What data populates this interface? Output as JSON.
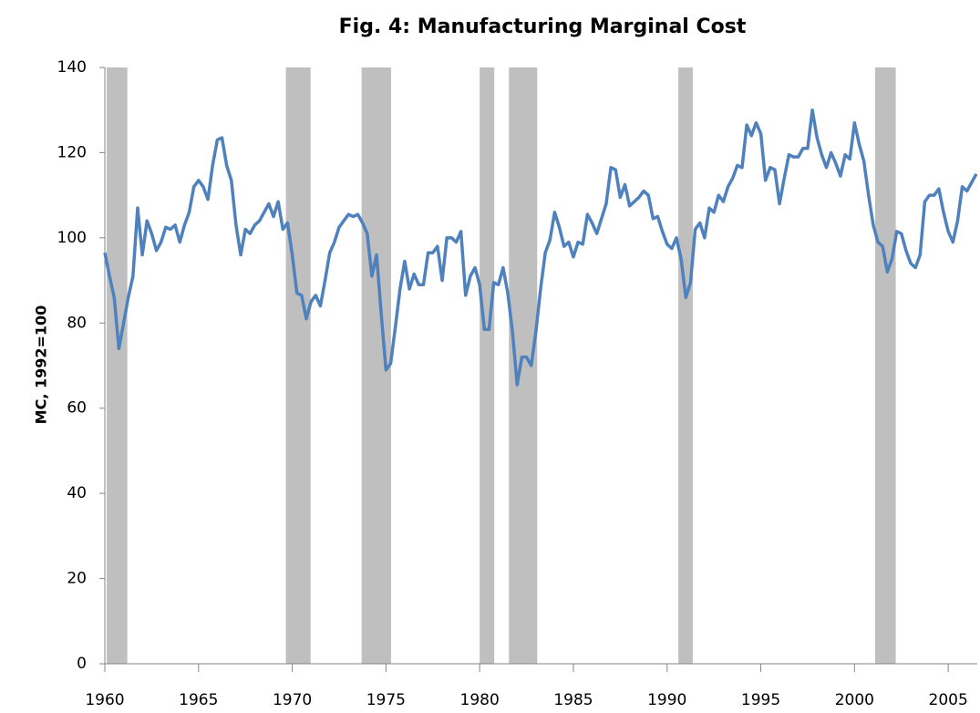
{
  "chart_data": {
    "type": "line",
    "title": "Fig. 4: Manufacturing Marginal Cost",
    "y_label": "MC, 1992=100",
    "x": [
      1960,
      1960.25,
      1960.5,
      1960.75,
      1961,
      1961.25,
      1961.5,
      1961.75,
      1962,
      1962.25,
      1962.5,
      1962.75,
      1963,
      1963.25,
      1963.5,
      1963.75,
      1964,
      1964.25,
      1964.5,
      1964.75,
      1965,
      1965.25,
      1965.5,
      1965.75,
      1966,
      1966.25,
      1966.5,
      1966.75,
      1967,
      1967.25,
      1967.5,
      1967.75,
      1968,
      1968.25,
      1968.5,
      1968.75,
      1969,
      1969.25,
      1969.5,
      1969.75,
      1970,
      1970.25,
      1970.5,
      1970.75,
      1971,
      1971.25,
      1971.5,
      1971.75,
      1972,
      1972.25,
      1972.5,
      1972.75,
      1973,
      1973.25,
      1973.5,
      1973.75,
      1974,
      1974.25,
      1974.5,
      1974.75,
      1975,
      1975.25,
      1975.5,
      1975.75,
      1976,
      1976.25,
      1976.5,
      1976.75,
      1977,
      1977.25,
      1977.5,
      1977.75,
      1978,
      1978.25,
      1978.5,
      1978.75,
      1979,
      1979.25,
      1979.5,
      1979.75,
      1980,
      1980.25,
      1980.5,
      1980.75,
      1981,
      1981.25,
      1981.5,
      1981.75,
      1982,
      1982.25,
      1982.5,
      1982.75,
      1983,
      1983.25,
      1983.5,
      1983.75,
      1984,
      1984.25,
      1984.5,
      1984.75,
      1985,
      1985.25,
      1985.5,
      1985.75,
      1986,
      1986.25,
      1986.5,
      1986.75,
      1987,
      1987.25,
      1987.5,
      1987.75,
      1988,
      1988.25,
      1988.5,
      1988.75,
      1989,
      1989.25,
      1989.5,
      1989.75,
      1990,
      1990.25,
      1990.5,
      1990.75,
      1991,
      1991.25,
      1991.5,
      1991.75,
      1992,
      1992.25,
      1992.5,
      1992.75,
      1993,
      1993.25,
      1993.5,
      1993.75,
      1994,
      1994.25,
      1994.5,
      1994.75,
      1995,
      1995.25,
      1995.5,
      1995.75,
      1996,
      1996.25,
      1996.5,
      1996.75,
      1997,
      1997.25,
      1997.5,
      1997.75,
      1998,
      1998.25,
      1998.5,
      1998.75,
      1999,
      1999.25,
      1999.5,
      1999.75,
      2000,
      2000.25,
      2000.5,
      2000.75,
      2001,
      2001.25,
      2001.5,
      2001.75,
      2002,
      2002.25,
      2002.5,
      2002.75,
      2003,
      2003.25,
      2003.5,
      2003.75,
      2004,
      2004.25,
      2004.5,
      2004.75,
      2005,
      2005.25,
      2005.5,
      2005.75,
      2006,
      2006.25,
      2006.5
    ],
    "series": [
      {
        "color": "#4f81bd",
        "values": [
          96.5,
          91,
          86,
          74,
          80,
          86,
          91,
          107,
          96,
          104,
          101,
          97,
          99,
          102.5,
          102,
          103,
          99,
          103,
          106,
          112,
          113.5,
          112,
          109,
          117,
          123,
          123.5,
          117,
          113.5,
          103,
          96,
          102,
          101,
          103,
          104,
          106,
          108,
          105,
          108.5,
          102,
          103.5,
          96,
          87,
          86.5,
          81,
          85,
          86.5,
          84,
          90,
          96.5,
          99,
          102.5,
          104,
          105.5,
          105,
          105.5,
          103.5,
          101,
          91,
          96,
          82,
          69,
          70.5,
          79,
          88,
          94.5,
          88,
          91.5,
          89,
          89,
          96.5,
          96.5,
          98,
          90,
          100,
          100,
          99,
          101.5,
          86.5,
          91,
          93,
          89,
          78.5,
          78.5,
          89.5,
          89,
          93,
          87,
          78,
          65.5,
          72,
          72,
          70,
          78,
          88,
          96.5,
          99.5,
          106,
          102.5,
          98,
          99,
          95.5,
          99,
          98.5,
          105.5,
          103.5,
          101,
          104.5,
          108,
          116.5,
          116,
          109.5,
          112.5,
          107.5,
          108.5,
          109.5,
          111,
          110,
          104.5,
          105,
          101.5,
          98.5,
          97.5,
          100,
          95,
          86,
          89.5,
          102,
          103.5,
          100,
          107,
          106,
          110,
          108.5,
          112,
          114,
          117,
          116.5,
          126.5,
          124,
          127,
          124.5,
          113.5,
          116.5,
          116,
          108,
          114,
          119.5,
          119,
          119,
          121,
          121,
          130,
          123.5,
          119.5,
          116.5,
          120,
          117.5,
          114.5,
          119.5,
          118.5,
          127,
          122,
          118,
          110,
          103,
          99,
          98,
          92,
          95,
          101.5,
          101,
          97,
          94,
          93,
          96,
          108.5,
          110,
          110,
          111.5,
          106,
          101.5,
          99,
          104,
          112,
          111,
          113,
          115
        ]
      }
    ],
    "recessions": [
      [
        1960.1,
        1961.2
      ],
      [
        1969.66,
        1970.98
      ],
      [
        1973.7,
        1975.27
      ],
      [
        1980.0,
        1980.78
      ],
      [
        1981.56,
        1983.07
      ],
      [
        1990.6,
        1991.37
      ],
      [
        2001.1,
        2002.2
      ]
    ],
    "recession_color": "#bfbfbf",
    "xlim": [
      1960,
      2006.55
    ],
    "xticks": [
      1960,
      1965,
      1970,
      1975,
      1980,
      1985,
      1990,
      1995,
      2000,
      2005
    ],
    "ylim": [
      0,
      140
    ],
    "yticks": [
      0,
      20,
      40,
      60,
      80,
      100,
      120,
      140
    ]
  }
}
